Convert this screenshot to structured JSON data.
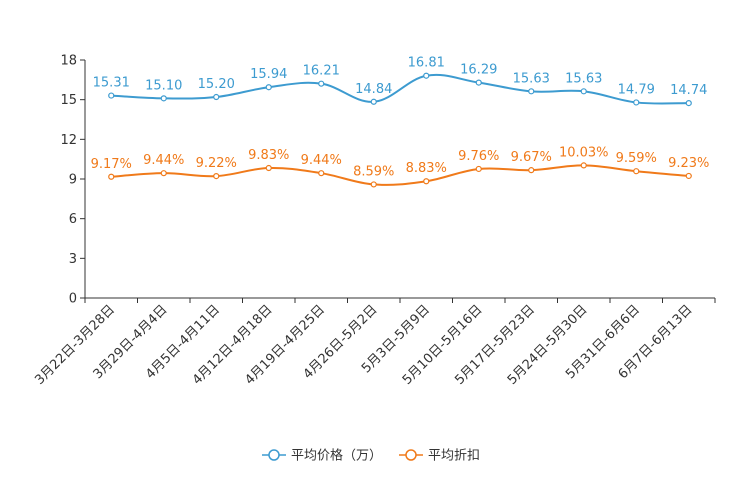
{
  "chart_data": {
    "type": "line",
    "title": "",
    "xlabel": "",
    "ylabel": "",
    "ylim": [
      0,
      18
    ],
    "yticks": [
      0,
      3,
      6,
      9,
      12,
      15,
      18
    ],
    "grid": false,
    "legend_position": "bottom-center",
    "categories": [
      "3月22日-3月28日",
      "3月29日-4月4日",
      "4月5日-4月11日",
      "4月12日-4月18日",
      "4月19日-4月25日",
      "4月26日-5月2日",
      "5月3日-5月9日",
      "5月10日-5月16日",
      "5月17日-5月23日",
      "5月24日-5月30日",
      "5月31日-6月6日",
      "6月7日-6月13日"
    ],
    "series": [
      {
        "name": "平均价格（万）",
        "color": "#3d9bd0",
        "values": [
          15.31,
          15.1,
          15.2,
          15.94,
          16.21,
          14.84,
          16.81,
          16.29,
          15.63,
          15.63,
          14.79,
          14.74
        ],
        "labels": [
          "15.31",
          "15.10",
          "15.20",
          "15.94",
          "16.21",
          "14.84",
          "16.81",
          "16.29",
          "15.63",
          "15.63",
          "14.79",
          "14.74"
        ]
      },
      {
        "name": "平均折扣",
        "color": "#f07a1a",
        "values": [
          9.17,
          9.44,
          9.22,
          9.83,
          9.44,
          8.59,
          8.83,
          9.76,
          9.67,
          10.03,
          9.59,
          9.23
        ],
        "labels": [
          "9.17%",
          "9.44%",
          "9.22%",
          "9.83%",
          "9.44%",
          "8.59%",
          "8.83%",
          "9.76%",
          "9.67%",
          "10.03%",
          "9.59%",
          "9.23%"
        ]
      }
    ]
  }
}
